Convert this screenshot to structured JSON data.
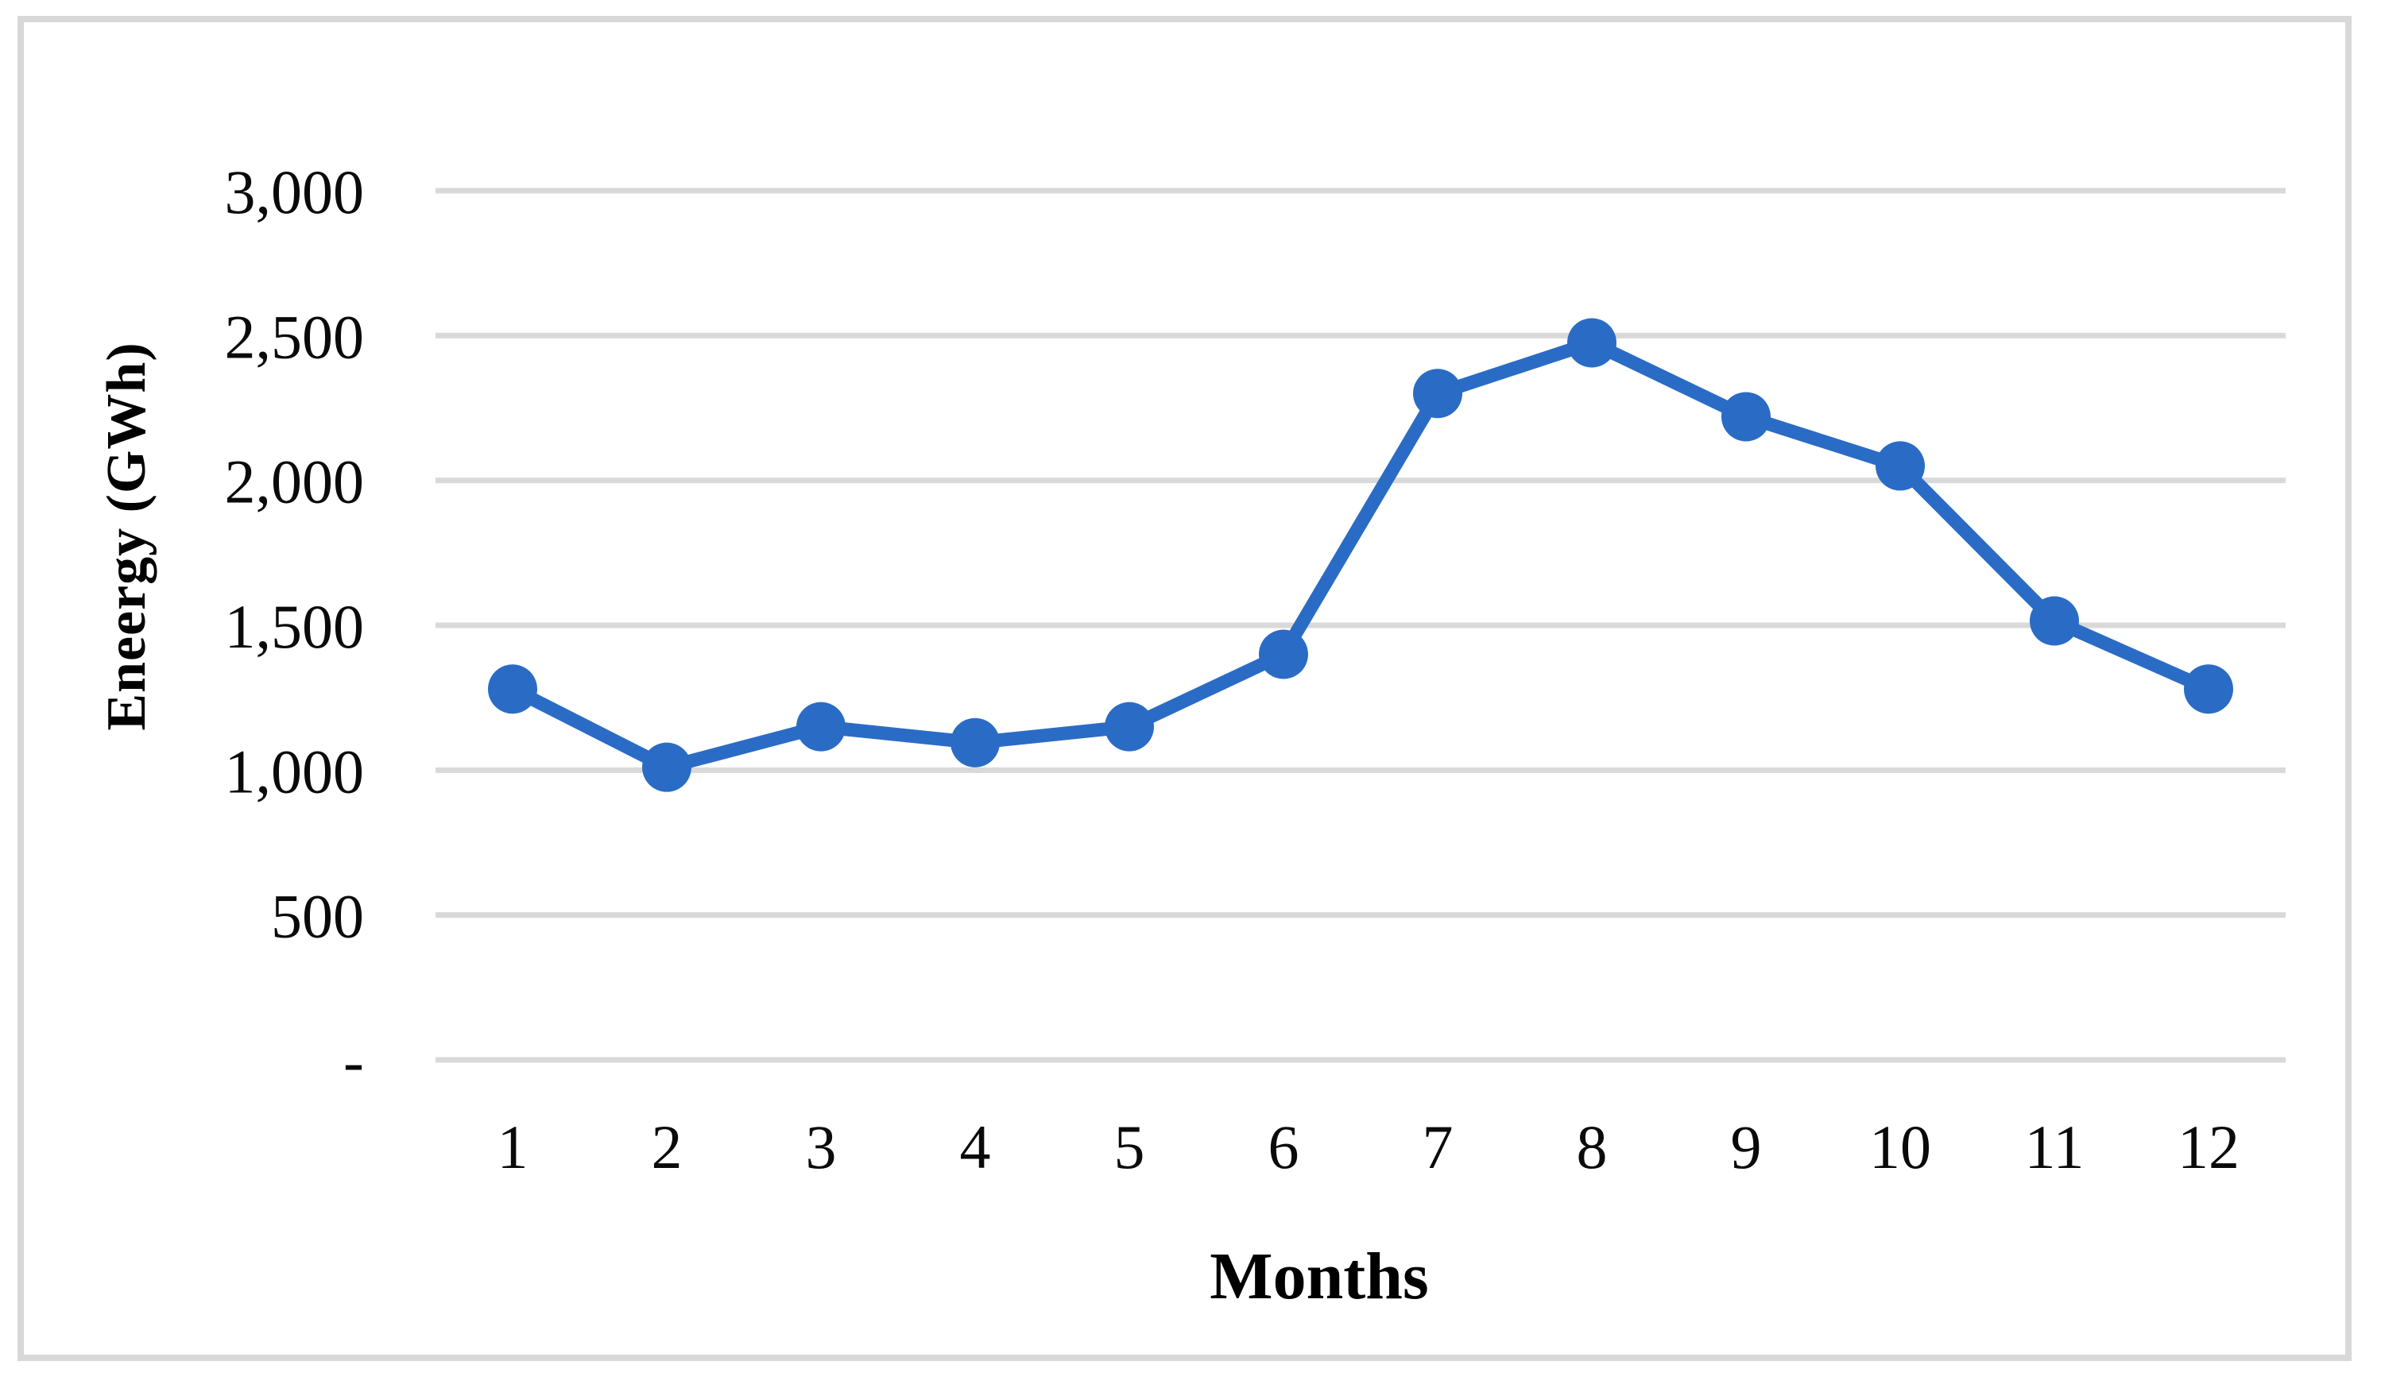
{
  "chart_data": {
    "type": "line",
    "title": "",
    "categories": [
      "1",
      "2",
      "3",
      "4",
      "5",
      "6",
      "7",
      "8",
      "9",
      "10",
      "11",
      "12"
    ],
    "series": [
      {
        "name": "Energy (GWh)",
        "values": [
          1280,
          1010,
          1150,
          1095,
          1150,
          1400,
          2300,
          2475,
          2220,
          2050,
          1515,
          1280
        ]
      }
    ],
    "xlabel": "Months",
    "ylabel": "Eneergy (GWh)",
    "ylim": [
      0,
      3000
    ],
    "y_ticks": [
      3000,
      2500,
      2000,
      1500,
      1000,
      500,
      0
    ],
    "y_tick_labels": [
      "3,000",
      "2,500",
      "2,000",
      "1,500",
      "1,000",
      "500",
      "-"
    ],
    "grid": true,
    "legend_position": "none",
    "line_color": "#2a6cc5",
    "marker_color": "#2a6cc5",
    "gridline_color": "#d9d9d9",
    "frame_color": "#d8d8d8",
    "background_color": "#ffffff"
  }
}
